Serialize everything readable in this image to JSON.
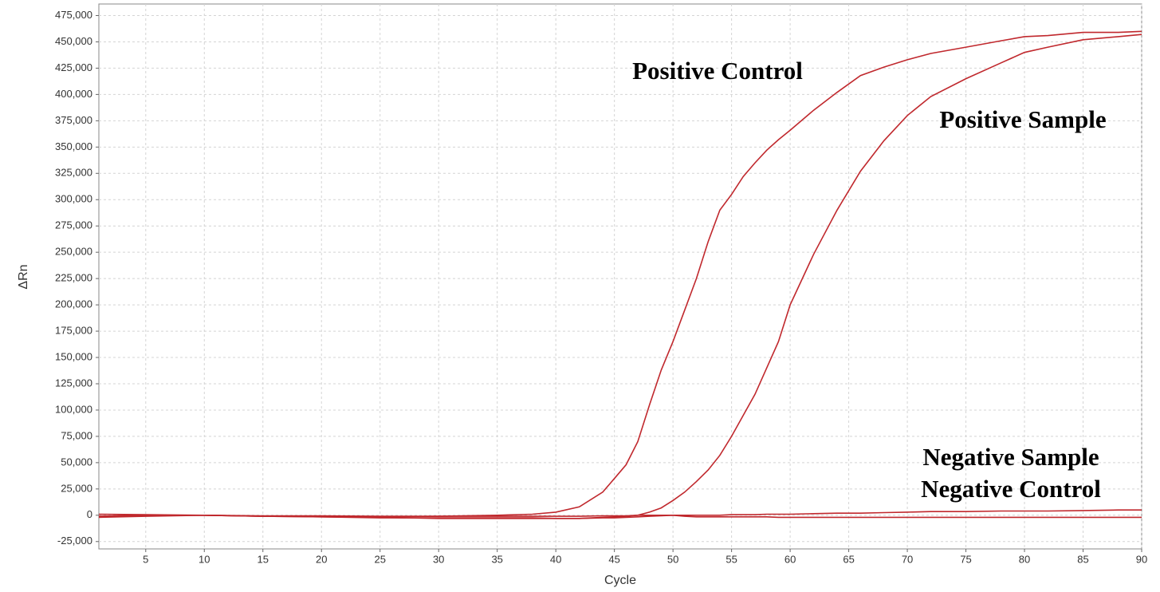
{
  "chart_data": {
    "type": "line",
    "x_label": "Cycle",
    "y_label": "ΔRn",
    "annotations": [
      "Positive Control",
      "Positive Sample",
      "Negative Sample",
      "Negative Control"
    ],
    "x": [
      1,
      5,
      10,
      15,
      20,
      25,
      30,
      35,
      38,
      40,
      42,
      44,
      45,
      46,
      47,
      48,
      49,
      50,
      51,
      52,
      53,
      54,
      55,
      56,
      57,
      58,
      59,
      60,
      62,
      64,
      66,
      68,
      70,
      72,
      75,
      78,
      80,
      82,
      85,
      88,
      90
    ],
    "series": [
      {
        "name": "Positive Control",
        "color": "#c0282d",
        "values": [
          1000,
          500,
          0,
          -1000,
          -1000,
          -1500,
          -1000,
          0,
          1000,
          3000,
          8000,
          22000,
          35000,
          48000,
          70000,
          105000,
          138000,
          165000,
          195000,
          225000,
          260000,
          290000,
          305000,
          322000,
          335000,
          347000,
          357000,
          366000,
          385000,
          402000,
          418000,
          426000,
          433000,
          439000,
          445000,
          451000,
          455000,
          456000,
          459000,
          459000,
          460000
        ]
      },
      {
        "name": "Positive Sample",
        "color": "#c0282d",
        "values": [
          -1000,
          0,
          0,
          -1000,
          -1500,
          -2000,
          -3000,
          -3000,
          -3000,
          -3000,
          -3000,
          -2000,
          -1500,
          -1000,
          0,
          3000,
          7000,
          14000,
          22000,
          32000,
          43000,
          57000,
          75000,
          95000,
          115000,
          140000,
          165000,
          200000,
          248000,
          290000,
          327000,
          356000,
          380000,
          398000,
          415000,
          430000,
          440000,
          445000,
          452000,
          455000,
          457000
        ]
      },
      {
        "name": "Negative Sample",
        "color": "#c0282d",
        "values": [
          -1000,
          0,
          0,
          -500,
          -500,
          -1000,
          -1000,
          -1000,
          -1000,
          -1000,
          -1000,
          -500,
          -500,
          -500,
          0,
          0,
          0,
          0,
          0,
          0,
          0,
          0,
          500,
          500,
          500,
          1000,
          1000,
          1000,
          1500,
          2000,
          2000,
          2500,
          3000,
          3500,
          3500,
          4000,
          4000,
          4000,
          4500,
          5000,
          5000
        ]
      },
      {
        "name": "Negative Control",
        "color": "#c0282d",
        "values": [
          -2000,
          -1000,
          0,
          -1000,
          -1500,
          -2500,
          -2500,
          -2500,
          -2500,
          -3000,
          -3000,
          -2500,
          -2500,
          -2000,
          -1500,
          -1000,
          -500,
          0,
          -1000,
          -1500,
          -1500,
          -1500,
          -1500,
          -1500,
          -1500,
          -1500,
          -2000,
          -2000,
          -2000,
          -2000,
          -2000,
          -2000,
          -2000,
          -2000,
          -2000,
          -2000,
          -2000,
          -2000,
          -2000,
          -2000,
          -2000
        ]
      }
    ],
    "xlim": [
      1,
      90
    ],
    "xticks": [
      5,
      10,
      15,
      20,
      25,
      30,
      35,
      40,
      45,
      50,
      55,
      60,
      65,
      70,
      75,
      80,
      85,
      90
    ],
    "ylim": [
      -32000,
      486000
    ],
    "yticks": [
      {
        "value": -25000,
        "label": "-25,000"
      },
      0,
      {
        "value": 25000,
        "label": "25,000"
      },
      {
        "value": 50000,
        "label": "50,000"
      },
      {
        "value": 75000,
        "label": "75,000"
      },
      {
        "value": 100000,
        "label": "100,000"
      },
      {
        "value": 125000,
        "label": "125,000"
      },
      {
        "value": 150000,
        "label": "150,000"
      },
      {
        "value": 175000,
        "label": "175,000"
      },
      {
        "value": 200000,
        "label": "200,000"
      },
      {
        "value": 225000,
        "label": "225,000"
      },
      {
        "value": 250000,
        "label": "250,000"
      },
      {
        "value": 275000,
        "label": "275,000"
      },
      {
        "value": 300000,
        "label": "300,000"
      },
      {
        "value": 325000,
        "label": "325,000"
      },
      {
        "value": 350000,
        "label": "350,000"
      },
      {
        "value": 375000,
        "label": "375,000"
      },
      {
        "value": 400000,
        "label": "400,000"
      },
      {
        "value": 425000,
        "label": "425,000"
      },
      {
        "value": 450000,
        "label": "450,000"
      },
      {
        "value": 475000,
        "label": "475,000"
      }
    ],
    "grid": true
  }
}
